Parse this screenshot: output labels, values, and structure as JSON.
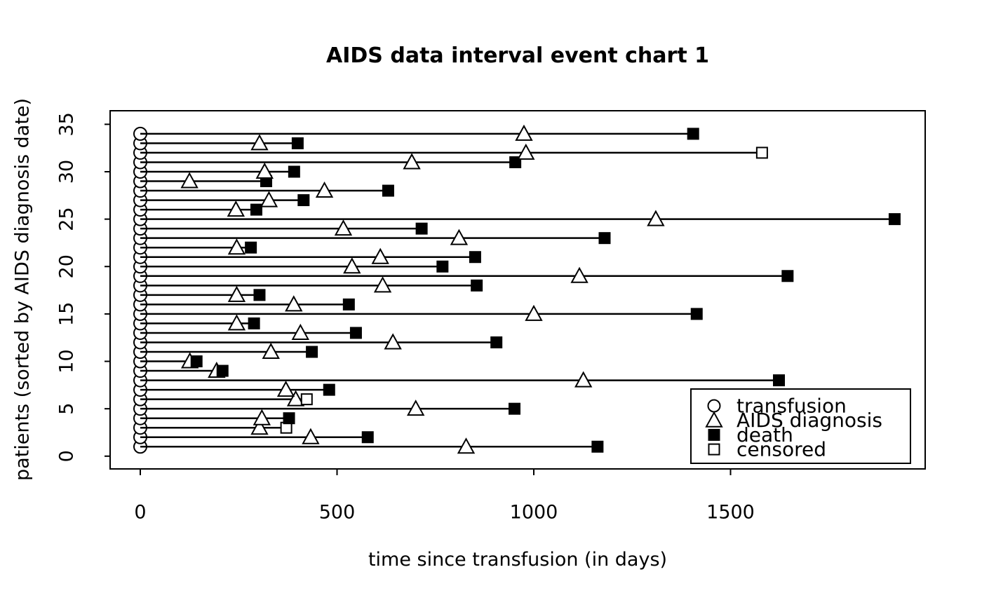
{
  "chart_data": {
    "type": "scatter",
    "subtype": "interval-event-chart",
    "title": "AIDS data interval event chart 1",
    "xlabel": "time since transfusion (in days)",
    "ylabel": "patients (sorted by AIDS diagnosis date)",
    "xlim": [
      0,
      1990
    ],
    "ylim": [
      0,
      35
    ],
    "x_ticks": [
      0,
      500,
      1000,
      1500
    ],
    "y_ticks": [
      0,
      5,
      10,
      15,
      20,
      25,
      30,
      35
    ],
    "grid": false,
    "legend_position": "bottom-right",
    "legend": [
      {
        "symbol": "circle",
        "label": "transfusion"
      },
      {
        "symbol": "triangle",
        "label": "AIDS diagnosis"
      },
      {
        "symbol": "filled-square",
        "label": "death"
      },
      {
        "symbol": "open-square",
        "label": "censored"
      }
    ],
    "series_note": "each row: transfusion at day 0 (circle), AIDS diagnosis (triangle), end of follow-up (filled square = death, open square = censored)",
    "patients": [
      {
        "id": 1,
        "transfusion": 0,
        "aids": 828,
        "end": 1162,
        "event": "death"
      },
      {
        "id": 2,
        "transfusion": 0,
        "aids": 433,
        "end": 578,
        "event": "death"
      },
      {
        "id": 3,
        "transfusion": 0,
        "aids": 303,
        "end": 371,
        "event": "censored"
      },
      {
        "id": 4,
        "transfusion": 0,
        "aids": 309,
        "end": 378,
        "event": "death"
      },
      {
        "id": 5,
        "transfusion": 0,
        "aids": 700,
        "end": 951,
        "event": "death"
      },
      {
        "id": 6,
        "transfusion": 0,
        "aids": 395,
        "end": 423,
        "event": "censored"
      },
      {
        "id": 7,
        "transfusion": 0,
        "aids": 370,
        "end": 480,
        "event": "death"
      },
      {
        "id": 8,
        "transfusion": 0,
        "aids": 1126,
        "end": 1623,
        "event": "death"
      },
      {
        "id": 9,
        "transfusion": 0,
        "aids": 194,
        "end": 209,
        "event": "death"
      },
      {
        "id": 10,
        "transfusion": 0,
        "aids": 126,
        "end": 143,
        "event": "death"
      },
      {
        "id": 11,
        "transfusion": 0,
        "aids": 332,
        "end": 436,
        "event": "death"
      },
      {
        "id": 12,
        "transfusion": 0,
        "aids": 642,
        "end": 905,
        "event": "death"
      },
      {
        "id": 13,
        "transfusion": 0,
        "aids": 407,
        "end": 548,
        "event": "death"
      },
      {
        "id": 14,
        "transfusion": 0,
        "aids": 245,
        "end": 289,
        "event": "death"
      },
      {
        "id": 15,
        "transfusion": 0,
        "aids": 1000,
        "end": 1414,
        "event": "death"
      },
      {
        "id": 16,
        "transfusion": 0,
        "aids": 390,
        "end": 530,
        "event": "death"
      },
      {
        "id": 17,
        "transfusion": 0,
        "aids": 245,
        "end": 303,
        "event": "death"
      },
      {
        "id": 18,
        "transfusion": 0,
        "aids": 616,
        "end": 855,
        "event": "death"
      },
      {
        "id": 19,
        "transfusion": 0,
        "aids": 1116,
        "end": 1645,
        "event": "death"
      },
      {
        "id": 20,
        "transfusion": 0,
        "aids": 538,
        "end": 768,
        "event": "death"
      },
      {
        "id": 21,
        "transfusion": 0,
        "aids": 610,
        "end": 851,
        "event": "death"
      },
      {
        "id": 22,
        "transfusion": 0,
        "aids": 245,
        "end": 281,
        "event": "death"
      },
      {
        "id": 23,
        "transfusion": 0,
        "aids": 810,
        "end": 1180,
        "event": "death"
      },
      {
        "id": 24,
        "transfusion": 0,
        "aids": 516,
        "end": 715,
        "event": "death"
      },
      {
        "id": 25,
        "transfusion": 0,
        "aids": 1310,
        "end": 1917,
        "event": "death"
      },
      {
        "id": 26,
        "transfusion": 0,
        "aids": 243,
        "end": 295,
        "event": "death"
      },
      {
        "id": 27,
        "transfusion": 0,
        "aids": 327,
        "end": 415,
        "event": "death"
      },
      {
        "id": 28,
        "transfusion": 0,
        "aids": 468,
        "end": 630,
        "event": "death"
      },
      {
        "id": 29,
        "transfusion": 0,
        "aids": 125,
        "end": 320,
        "event": "death"
      },
      {
        "id": 30,
        "transfusion": 0,
        "aids": 316,
        "end": 391,
        "event": "death"
      },
      {
        "id": 31,
        "transfusion": 0,
        "aids": 690,
        "end": 953,
        "event": "death"
      },
      {
        "id": 32,
        "transfusion": 0,
        "aids": 980,
        "end": 1580,
        "event": "censored"
      },
      {
        "id": 33,
        "transfusion": 0,
        "aids": 303,
        "end": 400,
        "event": "death"
      },
      {
        "id": 34,
        "transfusion": 0,
        "aids": 975,
        "end": 1405,
        "event": "death"
      }
    ]
  },
  "colors": {
    "foreground": "#000000",
    "background": "#ffffff",
    "marker_fill_open": "#ffffff",
    "marker_fill_death": "#000000"
  }
}
